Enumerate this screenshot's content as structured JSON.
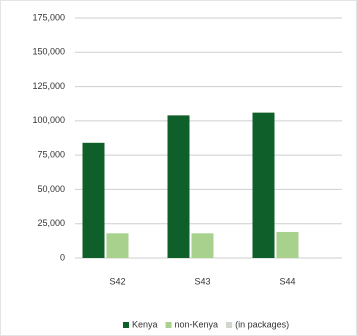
{
  "chart_data": {
    "type": "bar",
    "categories": [
      "S42",
      "S43",
      "S44"
    ],
    "series": [
      {
        "name": "Kenya",
        "color": "#0f5f2a",
        "values": [
          84000,
          104000,
          106000
        ]
      },
      {
        "name": "non-Kenya",
        "color": "#a8d18d",
        "values": [
          18000,
          18000,
          19000
        ]
      },
      {
        "name": "(in packages)",
        "color": "#d0d6cc",
        "values": [
          null,
          null,
          null
        ]
      }
    ],
    "ylim": [
      0,
      175000
    ],
    "yticks": [
      0,
      {
        "value": 25000,
        "label": "25,000"
      },
      {
        "value": 50000,
        "label": "50,000"
      },
      {
        "value": 75000,
        "label": "75,000"
      },
      {
        "value": 100000,
        "label": "100,000"
      },
      {
        "value": 125000,
        "label": "125,000"
      },
      {
        "value": 150000,
        "label": "150,000"
      },
      {
        "value": 175000,
        "label": "175,000"
      }
    ],
    "grid": true,
    "legend": "bottom"
  }
}
